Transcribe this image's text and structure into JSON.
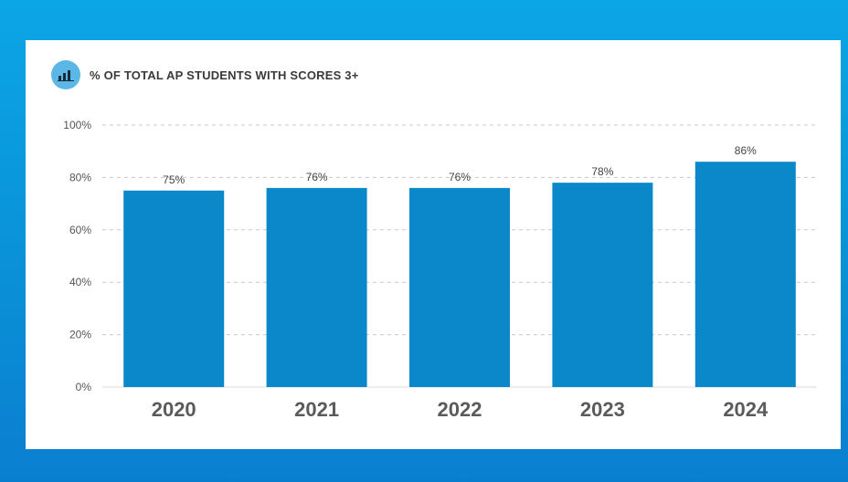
{
  "chart_data": {
    "type": "bar",
    "title": "% OF TOTAL AP STUDENTS WITH SCORES 3+",
    "categories": [
      "2020",
      "2021",
      "2022",
      "2023",
      "2024"
    ],
    "values": [
      75,
      76,
      76,
      78,
      86
    ],
    "value_labels": [
      "75%",
      "76%",
      "76%",
      "78%",
      "86%"
    ],
    "ylim": [
      0,
      100
    ],
    "yticks": [
      0,
      20,
      40,
      60,
      80,
      100
    ],
    "ytick_labels": [
      "0%",
      "20%",
      "40%",
      "60%",
      "80%",
      "100%"
    ],
    "grid": true,
    "bar_color": "#0a88c9",
    "icon": "bar-chart-icon"
  }
}
